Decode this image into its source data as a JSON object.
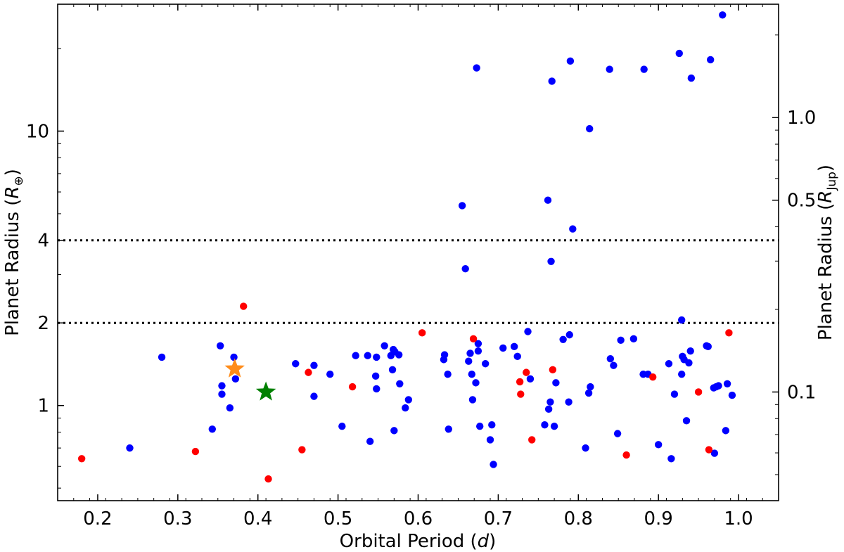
{
  "chart_data": {
    "type": "scatter",
    "title": "",
    "xlabel": "Orbital Period (",
    "xlabel_var": "d",
    "xlabel_end": ")",
    "ylabel": "Planet Radius (",
    "ylabel_var": "R",
    "ylabel_sub": "⊕",
    "ylabel_end": ")",
    "y2label": "Planet Radius (",
    "y2label_var": "R",
    "y2label_sub": "Jup",
    "y2label_end": ")",
    "xlim": [
      0.15,
      1.05
    ],
    "ylim": [
      0.45,
      29
    ],
    "yscale": "log",
    "xticks": [
      0.2,
      0.3,
      0.4,
      0.5,
      0.6,
      0.7,
      0.8,
      0.9,
      1.0
    ],
    "xtick_labels": [
      "0.2",
      "0.3",
      "0.4",
      "0.5",
      "0.6",
      "0.7",
      "0.8",
      "0.9",
      "1.0"
    ],
    "yticks": [
      1,
      2,
      4,
      10
    ],
    "ytick_labels": [
      "1",
      "2",
      "4",
      "10"
    ],
    "y2ticks_rjup": [
      0.1,
      0.5,
      1.0
    ],
    "y2tick_labels": [
      "0.1",
      "0.5",
      "1.0"
    ],
    "rjup_in_rearth": 11.2,
    "hlines": [
      2,
      4
    ],
    "grid": false,
    "colors": {
      "blue": "#0000ff",
      "red": "#ff0000",
      "orange": "#ff8c1a",
      "green": "#008000",
      "line": "#000000"
    },
    "series": [
      {
        "color": "blue",
        "x": [
          0.24,
          0.28,
          0.343,
          0.353,
          0.355,
          0.355,
          0.365,
          0.37,
          0.372,
          0.447,
          0.47,
          0.47,
          0.49,
          0.505,
          0.522,
          0.537,
          0.54,
          0.547,
          0.548,
          0.548,
          0.558,
          0.566,
          0.568,
          0.569,
          0.57,
          0.571,
          0.576,
          0.577,
          0.584,
          0.588,
          0.632,
          0.633,
          0.637,
          0.638,
          0.655,
          0.659,
          0.663,
          0.665,
          0.667,
          0.668,
          0.672,
          0.673,
          0.675,
          0.675,
          0.677,
          0.684,
          0.69,
          0.692,
          0.694,
          0.706,
          0.72,
          0.724,
          0.737,
          0.74,
          0.758,
          0.762,
          0.763,
          0.765,
          0.766,
          0.767,
          0.77,
          0.772,
          0.781,
          0.788,
          0.789,
          0.79,
          0.793,
          0.809,
          0.813,
          0.814,
          0.815,
          0.839,
          0.84,
          0.844,
          0.849,
          0.853,
          0.869,
          0.881,
          0.882,
          0.887,
          0.9,
          0.913,
          0.916,
          0.92,
          0.926,
          0.929,
          0.929,
          0.93,
          0.932,
          0.935,
          0.938,
          0.94,
          0.941,
          0.96,
          0.962,
          0.965,
          0.969,
          0.97,
          0.972,
          0.975,
          0.98,
          0.984,
          0.986,
          0.992
        ],
        "y": [
          0.7,
          1.5,
          0.82,
          1.65,
          1.18,
          1.1,
          0.98,
          1.5,
          1.25,
          1.42,
          1.4,
          1.08,
          1.3,
          0.84,
          1.52,
          1.52,
          0.74,
          1.28,
          1.15,
          1.5,
          1.65,
          1.52,
          1.35,
          1.6,
          0.81,
          1.57,
          1.53,
          1.2,
          0.98,
          1.05,
          1.47,
          1.53,
          1.3,
          0.82,
          5.35,
          3.15,
          1.45,
          1.55,
          1.3,
          1.05,
          1.21,
          17.0,
          1.58,
          1.68,
          0.84,
          1.42,
          0.75,
          0.85,
          0.61,
          1.62,
          1.64,
          1.51,
          1.86,
          1.25,
          0.85,
          5.6,
          0.97,
          1.03,
          3.35,
          15.2,
          0.84,
          1.21,
          1.74,
          1.03,
          1.81,
          18.0,
          4.4,
          0.7,
          1.11,
          10.2,
          1.17,
          16.8,
          1.48,
          1.4,
          0.79,
          1.73,
          1.75,
          1.3,
          16.8,
          1.3,
          0.72,
          1.42,
          0.64,
          1.1,
          19.2,
          2.05,
          1.3,
          1.51,
          1.47,
          0.88,
          1.43,
          1.58,
          15.6,
          1.65,
          1.64,
          18.2,
          1.16,
          0.67,
          1.17,
          1.18,
          26.5,
          0.81,
          1.2,
          1.09
        ]
      },
      {
        "color": "red",
        "x": [
          0.18,
          0.322,
          0.382,
          0.413,
          0.455,
          0.463,
          0.518,
          0.605,
          0.669,
          0.727,
          0.728,
          0.735,
          0.742,
          0.768,
          0.86,
          0.893,
          0.95,
          0.963,
          0.988
        ],
        "y": [
          0.64,
          0.68,
          2.3,
          0.54,
          0.69,
          1.32,
          1.17,
          1.84,
          1.75,
          1.22,
          1.1,
          1.32,
          0.75,
          1.35,
          0.66,
          1.27,
          1.12,
          0.69,
          1.84
        ]
      }
    ],
    "markers": [
      {
        "shape": "star",
        "color": "orange",
        "x": 0.371,
        "y": 1.36
      },
      {
        "shape": "star",
        "color": "green",
        "x": 0.41,
        "y": 1.12
      }
    ]
  }
}
